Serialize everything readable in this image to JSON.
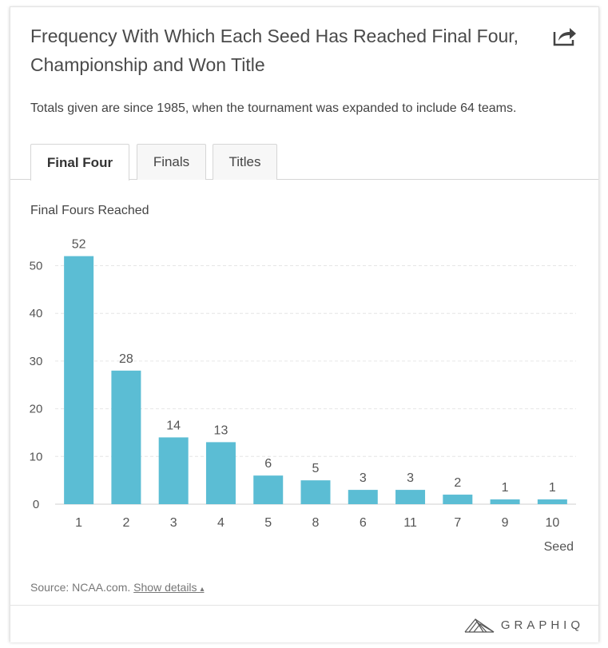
{
  "header": {
    "title": "Frequency With Which Each Seed Has Reached Final Four, Championship and Won Title",
    "subtitle": "Totals given are since 1985, when the tournament was expanded to include 64 teams."
  },
  "tabs": [
    {
      "label": "Final Four",
      "active": true
    },
    {
      "label": "Finals",
      "active": false
    },
    {
      "label": "Titles",
      "active": false
    }
  ],
  "footer": {
    "source_label": "Source: NCAA.com.",
    "details_label": "Show details",
    "details_caret": "▴",
    "brand": "GRAPHIQ"
  },
  "colors": {
    "bar": "#5bbdd4",
    "grid": "#e6e6e6",
    "axis_text": "#555555"
  },
  "icons": {
    "share": "share-icon",
    "brand_logo": "graphiq-logo-icon"
  },
  "chart_data": {
    "type": "bar",
    "title": "Final Fours Reached",
    "xlabel": "Seed",
    "ylabel": "",
    "categories": [
      "1",
      "2",
      "3",
      "4",
      "5",
      "8",
      "6",
      "11",
      "7",
      "9",
      "10"
    ],
    "values": [
      52,
      28,
      14,
      13,
      6,
      5,
      3,
      3,
      2,
      1,
      1
    ],
    "yticks": [
      0,
      10,
      20,
      30,
      40,
      50
    ],
    "ylim": [
      0,
      55
    ],
    "grid": true,
    "data_labels": true
  }
}
